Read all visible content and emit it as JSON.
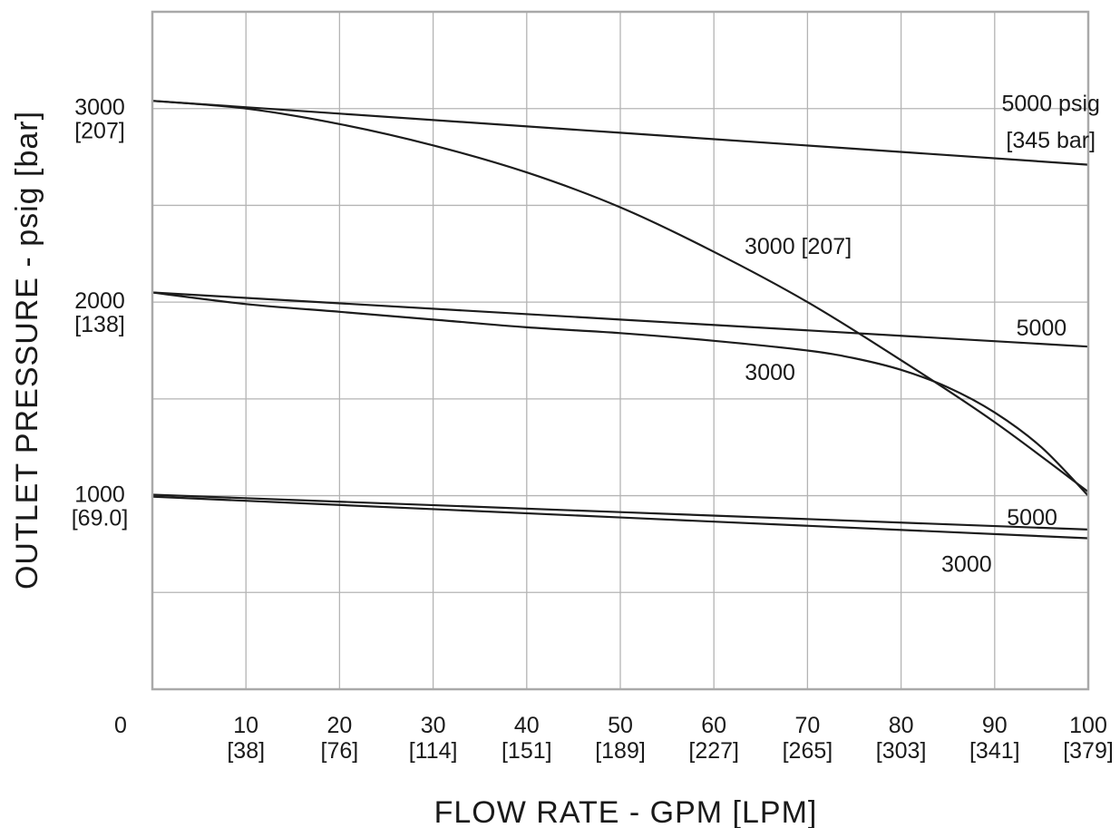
{
  "chart_data": {
    "type": "line",
    "title": "",
    "xlabel": "FLOW RATE - GPM [LPM]",
    "ylabel": "OUTLET PRESSURE - psig [bar]",
    "xlim": [
      0,
      100
    ],
    "ylim": [
      0,
      3500
    ],
    "grid": true,
    "x_origin_label": "0",
    "x_ticks": [
      {
        "value": 10,
        "label": "10",
        "sub": "[38]"
      },
      {
        "value": 20,
        "label": "20",
        "sub": "[76]"
      },
      {
        "value": 30,
        "label": "30",
        "sub": "[114]"
      },
      {
        "value": 40,
        "label": "40",
        "sub": "[151]"
      },
      {
        "value": 50,
        "label": "50",
        "sub": "[189]"
      },
      {
        "value": 60,
        "label": "60",
        "sub": "[227]"
      },
      {
        "value": 70,
        "label": "70",
        "sub": "[265]"
      },
      {
        "value": 80,
        "label": "80",
        "sub": "[303]"
      },
      {
        "value": 90,
        "label": "90",
        "sub": "[341]"
      },
      {
        "value": 100,
        "label": "100",
        "sub": "[379]"
      }
    ],
    "y_ticks": [
      {
        "value": 1000,
        "label": "1000",
        "sub": "[69.0]"
      },
      {
        "value": 2000,
        "label": "2000",
        "sub": "[138]"
      },
      {
        "value": 3000,
        "label": "3000",
        "sub": "[207]"
      }
    ],
    "series": [
      {
        "id": "s3000-5000",
        "x": [
          0,
          100
        ],
        "y": [
          3040,
          2710
        ]
      },
      {
        "id": "s3000-3000",
        "x": [
          0,
          10,
          20,
          30,
          40,
          50,
          60,
          70,
          80,
          90,
          100
        ],
        "y": [
          3040,
          3000,
          2920,
          2810,
          2670,
          2490,
          2260,
          2000,
          1700,
          1380,
          1020
        ]
      },
      {
        "id": "s2000-5000",
        "x": [
          0,
          100
        ],
        "y": [
          2050,
          1770
        ]
      },
      {
        "id": "s2000-3000",
        "x": [
          0,
          10,
          20,
          30,
          40,
          50,
          60,
          70,
          75,
          80,
          85,
          90,
          95,
          100
        ],
        "y": [
          2050,
          1990,
          1950,
          1910,
          1870,
          1840,
          1800,
          1750,
          1710,
          1650,
          1560,
          1430,
          1250,
          1000
        ]
      },
      {
        "id": "s1000-5000",
        "x": [
          0,
          100
        ],
        "y": [
          1005,
          825
        ]
      },
      {
        "id": "s1000-3000",
        "x": [
          0,
          100
        ],
        "y": [
          995,
          780
        ]
      }
    ],
    "annotations": [
      {
        "text": "5000 psig",
        "x": 96,
        "y": 3030
      },
      {
        "text": "[345 bar]",
        "x": 96,
        "y": 2840
      },
      {
        "text": "3000 [207]",
        "x": 69,
        "y": 2290
      },
      {
        "text": "5000",
        "x": 95,
        "y": 1870
      },
      {
        "text": "3000",
        "x": 66,
        "y": 1640
      },
      {
        "text": "5000",
        "x": 94,
        "y": 890
      },
      {
        "text": "3000",
        "x": 87,
        "y": 650
      }
    ]
  }
}
